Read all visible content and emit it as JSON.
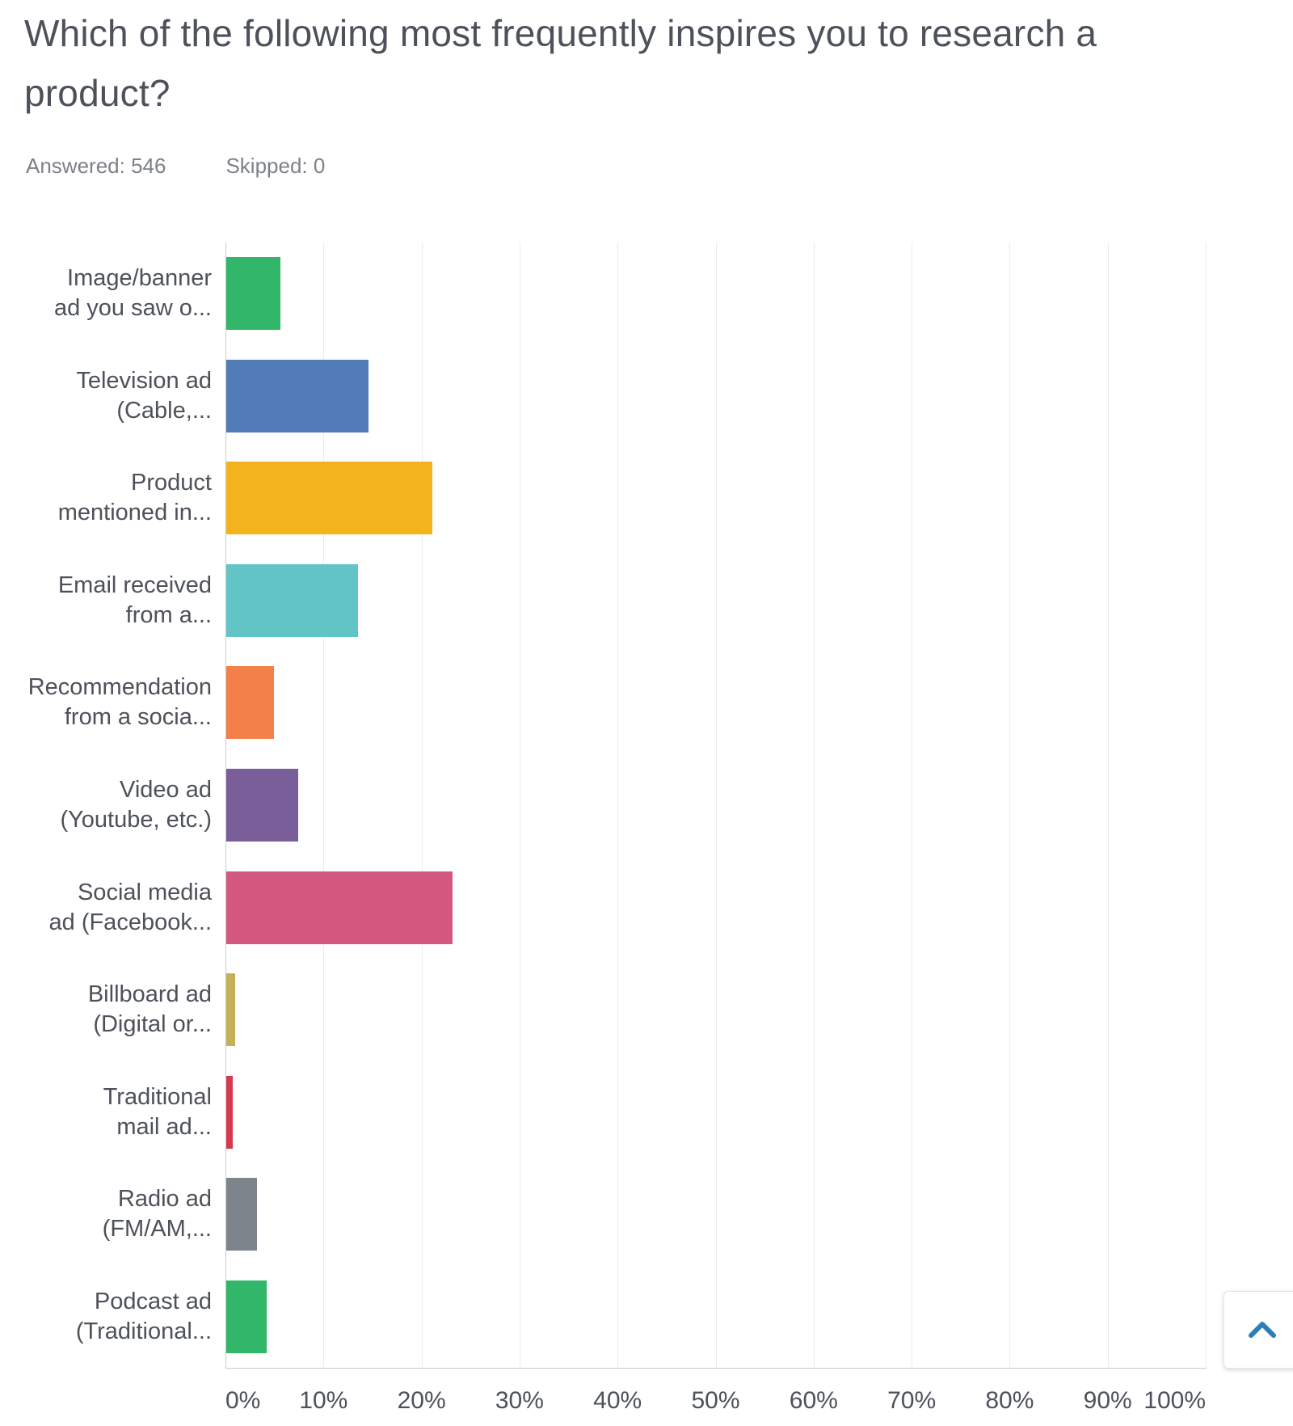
{
  "header": {
    "title": "Which of the following most frequently inspires you to research a product?",
    "answered_label": "Answered: 546",
    "skipped_label": "Skipped: 0"
  },
  "chart_data": {
    "type": "bar",
    "orientation": "horizontal",
    "title": "Which of the following most frequently inspires you to research a product?",
    "answered": 546,
    "skipped": 0,
    "xlim": [
      0,
      100
    ],
    "x_tick_labels": [
      "0%",
      "10%",
      "20%",
      "30%",
      "40%",
      "50%",
      "60%",
      "70%",
      "80%",
      "90%",
      "100%"
    ],
    "grid": true,
    "legend": false,
    "xlabel": "",
    "ylabel": "",
    "categories": [
      "Image/banner ad you saw o...",
      "Television ad (Cable,...",
      "Product mentioned in...",
      "Email received from a...",
      "Recommendation from a socia...",
      "Video ad (Youtube, etc.)",
      "Social media ad (Facebook...",
      "Billboard ad (Digital or...",
      "Traditional mail ad...",
      "Radio ad (FM/AM,...",
      "Podcast ad (Traditional..."
    ],
    "category_label_lines": [
      [
        "Image/banner",
        "ad you saw o..."
      ],
      [
        "Television ad",
        "(Cable,..."
      ],
      [
        "Product",
        "mentioned in..."
      ],
      [
        "Email received",
        "from a..."
      ],
      [
        "Recommendation",
        "from a socia..."
      ],
      [
        "Video ad",
        "(Youtube, etc.)"
      ],
      [
        "Social media",
        "ad (Facebook..."
      ],
      [
        "Billboard ad",
        "(Digital or..."
      ],
      [
        "Traditional",
        "mail ad..."
      ],
      [
        "Radio ad",
        "(FM/AM,..."
      ],
      [
        "Podcast ad",
        "(Traditional..."
      ]
    ],
    "values_pct": [
      5.5,
      14.5,
      21.0,
      13.4,
      4.9,
      7.3,
      23.1,
      0.9,
      0.7,
      3.1,
      4.1
    ],
    "bar_colors": [
      "#32B669",
      "#527CB8",
      "#F2B31C",
      "#63C4C7",
      "#F28048",
      "#7A5E99",
      "#D2587F",
      "#C6B157",
      "#D73A50",
      "#7D848B",
      "#32B669"
    ]
  },
  "scroll_top_button": {
    "icon": "chevron-up-icon",
    "icon_color": "#2B7FB8"
  },
  "colors": {
    "title_text": "#4D5159",
    "stats_text": "#7D8187",
    "axis_text": "#4D5159",
    "gridline": "#ECECEE",
    "axis_line": "#C8CBCF",
    "background": "#FFFFFF"
  }
}
